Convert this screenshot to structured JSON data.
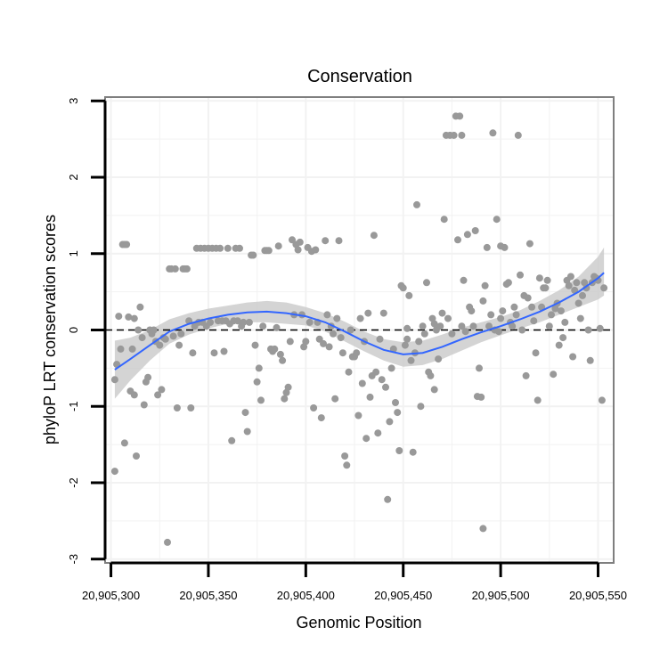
{
  "chart_data": {
    "type": "scatter",
    "title": "Conservation",
    "xlabel": "Genomic Position",
    "ylabel": "phyloP LRT conservation scores",
    "xlim": [
      20905297,
      20905558
    ],
    "ylim": [
      -3.05,
      3.05
    ],
    "x_ticks": [
      20905300,
      20905350,
      20905400,
      20905450,
      20905500,
      20905550
    ],
    "x_tick_labels": [
      "20,905,300",
      "20,905,350",
      "20,905,400",
      "20,905,450",
      "20,905,500",
      "20,905,550"
    ],
    "y_ticks": [
      -3,
      -2,
      -1,
      0,
      1,
      2,
      3
    ],
    "y_tick_labels": [
      "-3",
      "-2",
      "-1",
      "0",
      "1",
      "2",
      "3"
    ],
    "reference_line": {
      "y": 0,
      "style": "dashed"
    },
    "colors": {
      "points": "#999999",
      "smooth_line": "#3366FF",
      "confidence_band": "#CCCCCC",
      "panel_border": "#7F7F7F",
      "grid": "#F2F2F2",
      "reference_line": "#000000"
    },
    "points": [
      [
        20905302,
        -0.65
      ],
      [
        20905302,
        -1.85
      ],
      [
        20905303,
        -0.45
      ],
      [
        20905304,
        0.18
      ],
      [
        20905305,
        -0.25
      ],
      [
        20905306,
        1.12
      ],
      [
        20905307,
        1.12
      ],
      [
        20905307,
        -1.48
      ],
      [
        20905308,
        1.12
      ],
      [
        20905309,
        0.17
      ],
      [
        20905310,
        -0.8
      ],
      [
        20905311,
        -0.25
      ],
      [
        20905312,
        0.15
      ],
      [
        20905312,
        -0.85
      ],
      [
        20905313,
        -1.65
      ],
      [
        20905314,
        0.0
      ],
      [
        20905315,
        0.3
      ],
      [
        20905316,
        -0.1
      ],
      [
        20905317,
        -0.98
      ],
      [
        20905318,
        -0.68
      ],
      [
        20905319,
        -0.62
      ],
      [
        20905320,
        0.0
      ],
      [
        20905321,
        -0.05
      ],
      [
        20905322,
        0.0
      ],
      [
        20905323,
        -0.15
      ],
      [
        20905324,
        -0.85
      ],
      [
        20905325,
        -0.2
      ],
      [
        20905326,
        -0.78
      ],
      [
        20905327,
        -0.1
      ],
      [
        20905328,
        -0.12
      ],
      [
        20905329,
        -2.78
      ],
      [
        20905330,
        0.8
      ],
      [
        20905331,
        0.8
      ],
      [
        20905332,
        -0.08
      ],
      [
        20905333,
        0.8
      ],
      [
        20905334,
        -1.02
      ],
      [
        20905335,
        -0.2
      ],
      [
        20905336,
        -0.05
      ],
      [
        20905337,
        0.8
      ],
      [
        20905338,
        0.8
      ],
      [
        20905339,
        0.8
      ],
      [
        20905340,
        0.12
      ],
      [
        20905341,
        -1.02
      ],
      [
        20905342,
        -0.3
      ],
      [
        20905343,
        0.05
      ],
      [
        20905344,
        1.07
      ],
      [
        20905345,
        0.1
      ],
      [
        20905346,
        1.07
      ],
      [
        20905347,
        0.1
      ],
      [
        20905348,
        1.07
      ],
      [
        20905349,
        0.05
      ],
      [
        20905350,
        1.07
      ],
      [
        20905351,
        0.1
      ],
      [
        20905352,
        1.07
      ],
      [
        20905353,
        -0.3
      ],
      [
        20905354,
        1.07
      ],
      [
        20905355,
        0.12
      ],
      [
        20905356,
        1.07
      ],
      [
        20905357,
        0.12
      ],
      [
        20905358,
        -0.28
      ],
      [
        20905359,
        0.12
      ],
      [
        20905360,
        1.07
      ],
      [
        20905361,
        0.08
      ],
      [
        20905362,
        -1.45
      ],
      [
        20905363,
        0.12
      ],
      [
        20905364,
        1.07
      ],
      [
        20905365,
        0.12
      ],
      [
        20905366,
        1.07
      ],
      [
        20905367,
        0.05
      ],
      [
        20905368,
        0.1
      ],
      [
        20905369,
        -1.08
      ],
      [
        20905370,
        -1.33
      ],
      [
        20905371,
        0.1
      ],
      [
        20905372,
        0.98
      ],
      [
        20905373,
        0.98
      ],
      [
        20905374,
        -0.2
      ],
      [
        20905375,
        -0.68
      ],
      [
        20905376,
        -0.5
      ],
      [
        20905377,
        -0.92
      ],
      [
        20905378,
        0.05
      ],
      [
        20905379,
        1.04
      ],
      [
        20905380,
        1.04
      ],
      [
        20905381,
        1.04
      ],
      [
        20905382,
        -0.25
      ],
      [
        20905383,
        -0.28
      ],
      [
        20905384,
        -0.25
      ],
      [
        20905385,
        0.03
      ],
      [
        20905386,
        1.1
      ],
      [
        20905387,
        -0.32
      ],
      [
        20905388,
        -0.4
      ],
      [
        20905389,
        -0.9
      ],
      [
        20905390,
        -0.82
      ],
      [
        20905391,
        -0.75
      ],
      [
        20905392,
        -0.15
      ],
      [
        20905393,
        1.18
      ],
      [
        20905394,
        0.2
      ],
      [
        20905395,
        1.12
      ],
      [
        20905396,
        1.05
      ],
      [
        20905397,
        1.15
      ],
      [
        20905398,
        0.2
      ],
      [
        20905399,
        -0.22
      ],
      [
        20905400,
        -0.15
      ],
      [
        20905401,
        1.08
      ],
      [
        20905402,
        0.1
      ],
      [
        20905403,
        1.03
      ],
      [
        20905404,
        -1.02
      ],
      [
        20905405,
        1.05
      ],
      [
        20905406,
        0.1
      ],
      [
        20905407,
        -0.12
      ],
      [
        20905408,
        -1.15
      ],
      [
        20905409,
        -0.18
      ],
      [
        20905410,
        1.17
      ],
      [
        20905411,
        0.2
      ],
      [
        20905412,
        -0.22
      ],
      [
        20905413,
        0.05
      ],
      [
        20905414,
        -0.05
      ],
      [
        20905415,
        -0.9
      ],
      [
        20905416,
        0.15
      ],
      [
        20905417,
        1.17
      ],
      [
        20905418,
        -0.1
      ],
      [
        20905419,
        -0.3
      ],
      [
        20905420,
        -1.65
      ],
      [
        20905421,
        -1.77
      ],
      [
        20905422,
        -0.55
      ],
      [
        20905423,
        0.0
      ],
      [
        20905424,
        -0.35
      ],
      [
        20905425,
        -0.35
      ],
      [
        20905426,
        -0.3
      ],
      [
        20905427,
        -1.12
      ],
      [
        20905428,
        0.15
      ],
      [
        20905429,
        -0.7
      ],
      [
        20905430,
        -0.15
      ],
      [
        20905431,
        -1.42
      ],
      [
        20905432,
        0.22
      ],
      [
        20905433,
        -0.88
      ],
      [
        20905434,
        -0.6
      ],
      [
        20905435,
        1.24
      ],
      [
        20905436,
        -0.55
      ],
      [
        20905437,
        -1.35
      ],
      [
        20905438,
        -0.12
      ],
      [
        20905439,
        -0.65
      ],
      [
        20905440,
        0.22
      ],
      [
        20905441,
        -0.75
      ],
      [
        20905442,
        -2.22
      ],
      [
        20905443,
        -1.2
      ],
      [
        20905444,
        -0.5
      ],
      [
        20905445,
        -0.25
      ],
      [
        20905446,
        -0.95
      ],
      [
        20905447,
        -1.08
      ],
      [
        20905448,
        -1.58
      ],
      [
        20905449,
        0.58
      ],
      [
        20905450,
        0.55
      ],
      [
        20905451,
        -0.2
      ],
      [
        20905452,
        -0.12
      ],
      [
        20905453,
        0.45
      ],
      [
        20905454,
        -0.4
      ],
      [
        20905455,
        -1.6
      ],
      [
        20905456,
        -0.3
      ],
      [
        20905457,
        1.64
      ],
      [
        20905458,
        -0.15
      ],
      [
        20905459,
        -1.0
      ],
      [
        20905460,
        0.05
      ],
      [
        20905461,
        -0.05
      ],
      [
        20905462,
        0.62
      ],
      [
        20905463,
        -0.55
      ],
      [
        20905464,
        -0.6
      ],
      [
        20905465,
        0.15
      ],
      [
        20905466,
        -0.78
      ],
      [
        20905467,
        0.0
      ],
      [
        20905468,
        -0.38
      ],
      [
        20905469,
        0.05
      ],
      [
        20905470,
        0.22
      ],
      [
        20905471,
        1.45
      ],
      [
        20905472,
        2.55
      ],
      [
        20905473,
        0.15
      ],
      [
        20905474,
        2.55
      ],
      [
        20905475,
        -0.05
      ],
      [
        20905476,
        2.55
      ],
      [
        20905477,
        2.8
      ],
      [
        20905478,
        1.18
      ],
      [
        20905479,
        2.8
      ],
      [
        20905480,
        2.55
      ],
      [
        20905481,
        0.65
      ],
      [
        20905482,
        -0.02
      ],
      [
        20905483,
        1.25
      ],
      [
        20905484,
        0.3
      ],
      [
        20905485,
        0.25
      ],
      [
        20905486,
        0.05
      ],
      [
        20905487,
        1.3
      ],
      [
        20905488,
        -0.87
      ],
      [
        20905489,
        -0.5
      ],
      [
        20905490,
        -0.88
      ],
      [
        20905491,
        0.38
      ],
      [
        20905492,
        0.58
      ],
      [
        20905493,
        1.08
      ],
      [
        20905494,
        0.05
      ],
      [
        20905495,
        0.2
      ],
      [
        20905496,
        2.58
      ],
      [
        20905497,
        0.0
      ],
      [
        20905498,
        1.45
      ],
      [
        20905499,
        -0.02
      ],
      [
        20905500,
        0.15
      ],
      [
        20905501,
        0.25
      ],
      [
        20905502,
        1.08
      ],
      [
        20905503,
        0.6
      ],
      [
        20905504,
        0.62
      ],
      [
        20905505,
        0.1
      ],
      [
        20905506,
        0.05
      ],
      [
        20905507,
        0.3
      ],
      [
        20905508,
        0.2
      ],
      [
        20905509,
        2.55
      ],
      [
        20905510,
        0.72
      ],
      [
        20905511,
        0.0
      ],
      [
        20905512,
        0.45
      ],
      [
        20905513,
        -0.6
      ],
      [
        20905514,
        0.42
      ],
      [
        20905515,
        1.13
      ],
      [
        20905516,
        0.3
      ],
      [
        20905517,
        0.12
      ],
      [
        20905518,
        -0.3
      ],
      [
        20905519,
        -0.92
      ],
      [
        20905520,
        0.68
      ],
      [
        20905521,
        0.3
      ],
      [
        20905522,
        0.55
      ],
      [
        20905523,
        0.55
      ],
      [
        20905524,
        0.65
      ],
      [
        20905525,
        0.05
      ],
      [
        20905526,
        0.2
      ],
      [
        20905527,
        -0.58
      ],
      [
        20905528,
        0.28
      ],
      [
        20905529,
        0.35
      ],
      [
        20905530,
        -0.2
      ],
      [
        20905531,
        0.25
      ],
      [
        20905532,
        -0.1
      ],
      [
        20905533,
        0.1
      ],
      [
        20905534,
        0.65
      ],
      [
        20905535,
        0.58
      ],
      [
        20905536,
        0.7
      ],
      [
        20905537,
        -0.35
      ],
      [
        20905538,
        0.52
      ],
      [
        20905539,
        0.62
      ],
      [
        20905540,
        0.35
      ],
      [
        20905541,
        0.15
      ],
      [
        20905542,
        0.45
      ],
      [
        20905543,
        0.62
      ],
      [
        20905544,
        0.55
      ],
      [
        20905545,
        0.0
      ],
      [
        20905546,
        -0.4
      ],
      [
        20905547,
        0.62
      ],
      [
        20905548,
        0.7
      ],
      [
        20905549,
        0.68
      ],
      [
        20905550,
        0.65
      ],
      [
        20905551,
        0.02
      ],
      [
        20905552,
        -0.92
      ],
      [
        20905553,
        0.55
      ],
      [
        20905491,
        -2.6
      ],
      [
        20905500,
        1.1
      ],
      [
        20905466,
        0.08
      ],
      [
        20905480,
        0.05
      ],
      [
        20905452,
        0.02
      ]
    ],
    "smooth": {
      "x": [
        20905302,
        20905310,
        20905320,
        20905330,
        20905340,
        20905350,
        20905360,
        20905370,
        20905380,
        20905390,
        20905400,
        20905410,
        20905420,
        20905430,
        20905440,
        20905450,
        20905460,
        20905470,
        20905480,
        20905490,
        20905500,
        20905510,
        20905520,
        20905530,
        20905540,
        20905550,
        20905553
      ],
      "y": [
        -0.52,
        -0.38,
        -0.2,
        -0.02,
        0.08,
        0.15,
        0.2,
        0.23,
        0.24,
        0.22,
        0.18,
        0.1,
        -0.02,
        -0.15,
        -0.26,
        -0.32,
        -0.3,
        -0.22,
        -0.12,
        -0.03,
        0.05,
        0.14,
        0.24,
        0.36,
        0.5,
        0.68,
        0.75
      ],
      "lower": [
        -0.9,
        -0.66,
        -0.4,
        -0.18,
        -0.06,
        0.02,
        0.08,
        0.1,
        0.1,
        0.08,
        0.06,
        -0.02,
        -0.15,
        -0.28,
        -0.4,
        -0.48,
        -0.46,
        -0.38,
        -0.27,
        -0.16,
        -0.07,
        0.02,
        0.1,
        0.2,
        0.3,
        0.4,
        0.45
      ],
      "upper": [
        -0.14,
        -0.1,
        0.0,
        0.14,
        0.22,
        0.28,
        0.32,
        0.36,
        0.38,
        0.36,
        0.3,
        0.22,
        0.11,
        -0.02,
        -0.12,
        -0.16,
        -0.14,
        -0.06,
        0.03,
        0.1,
        0.17,
        0.26,
        0.38,
        0.52,
        0.7,
        0.96,
        1.08
      ]
    }
  }
}
